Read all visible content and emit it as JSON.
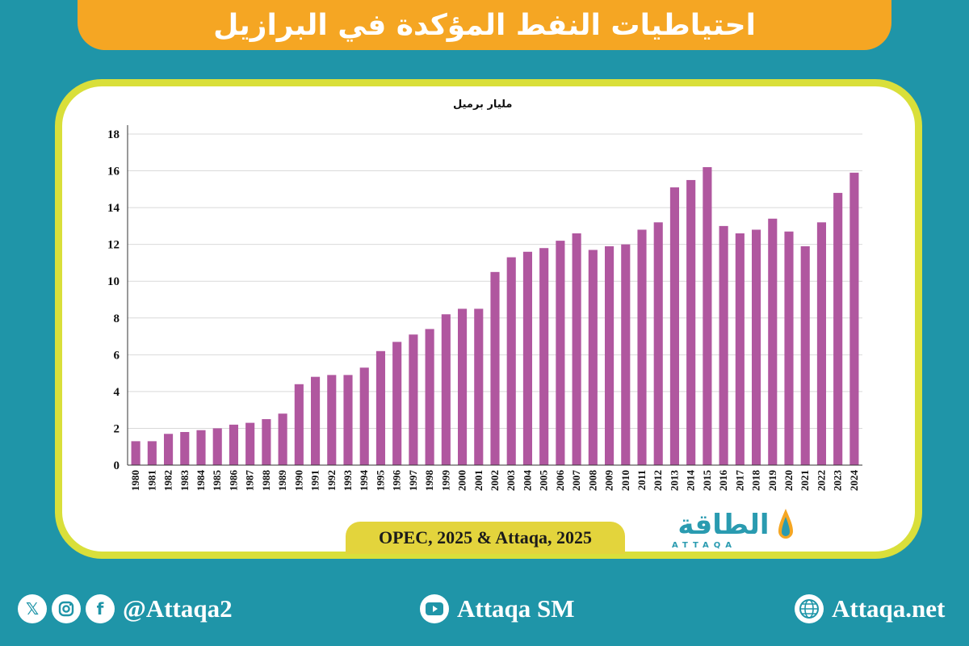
{
  "title": "احتياطيات النفط المؤكدة في البرازيل",
  "source": "OPEC, 2025 & Attaqa, 2025",
  "logo": {
    "arabic": "الطاقة",
    "english": "ATTAQA"
  },
  "footer": {
    "social_handle": "@Attaqa2",
    "youtube": "Attaqa SM",
    "website": "Attaqa.net",
    "icons": [
      "x-icon",
      "instagram-icon",
      "facebook-icon",
      "youtube-icon",
      "globe-icon"
    ]
  },
  "colors": {
    "background": "#1f95a8",
    "banner": "#f5a623",
    "card_border": "#d9df3a",
    "bar": "#b0579f",
    "source_box": "#e3d43c"
  },
  "chart_data": {
    "type": "bar",
    "ylabel": "مليار برميل",
    "ylim": [
      0,
      18
    ],
    "yticks": [
      0,
      2,
      4,
      6,
      8,
      10,
      12,
      14,
      16,
      18
    ],
    "grid": true,
    "categories": [
      "1980",
      "1981",
      "1982",
      "1983",
      "1984",
      "1985",
      "1986",
      "1987",
      "1988",
      "1989",
      "1990",
      "1991",
      "1992",
      "1993",
      "1994",
      "1995",
      "1996",
      "1997",
      "1998",
      "1999",
      "2000",
      "2001",
      "2002",
      "2003",
      "2004",
      "2005",
      "2006",
      "2007",
      "2008",
      "2009",
      "2010",
      "2011",
      "2012",
      "2013",
      "2014",
      "2015",
      "2016",
      "2017",
      "2018",
      "2019",
      "2020",
      "2021",
      "2022",
      "2023",
      "2024"
    ],
    "values": [
      1.3,
      1.3,
      1.7,
      1.8,
      1.9,
      2.0,
      2.2,
      2.3,
      2.5,
      2.8,
      4.4,
      4.8,
      4.9,
      4.9,
      5.3,
      6.2,
      6.7,
      7.1,
      7.4,
      8.2,
      8.5,
      8.5,
      10.5,
      11.3,
      11.6,
      11.8,
      12.2,
      12.6,
      11.7,
      11.9,
      12.0,
      12.8,
      13.2,
      15.1,
      15.5,
      16.2,
      13.0,
      12.6,
      12.8,
      13.4,
      12.7,
      11.9,
      13.2,
      14.8,
      15.9
    ]
  }
}
